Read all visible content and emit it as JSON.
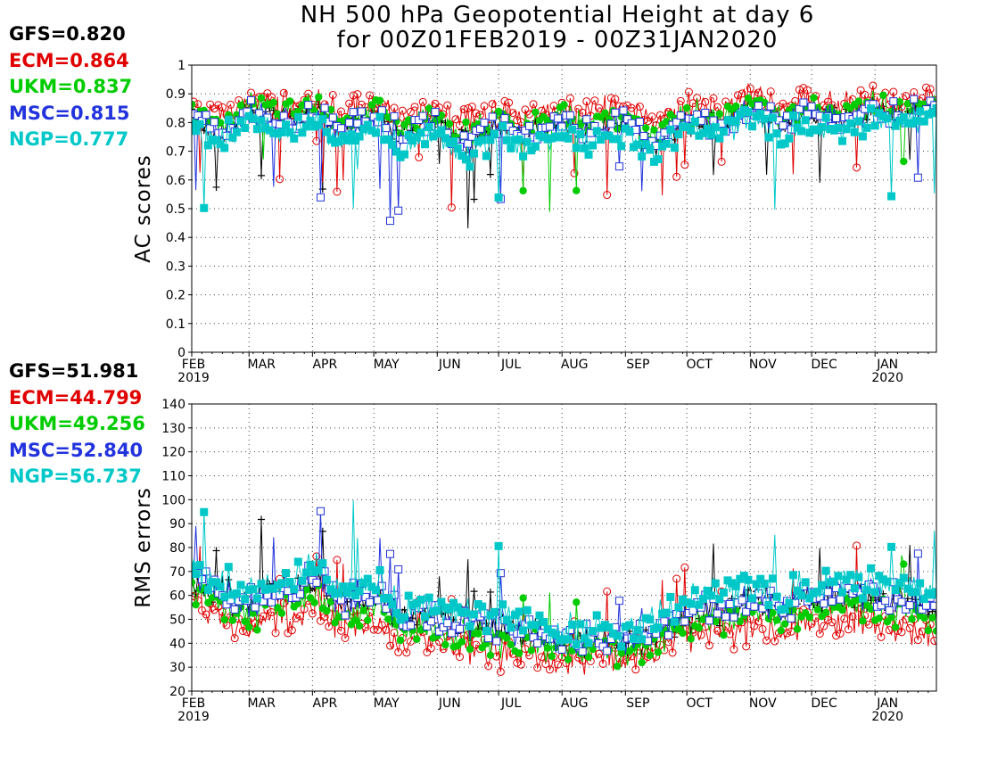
{
  "title": {
    "line1": "NH 500 hPa Geopotential Height at day 6",
    "line2": "for 00Z01FEB2019 - 00Z31JAN2020"
  },
  "colors": {
    "GFS": "#000000",
    "ECM": "#e00000",
    "UKM": "#00cc00",
    "MSC": "#2233dd",
    "NGP": "#00c8c8"
  },
  "chart_data": [
    {
      "type": "line",
      "title": "",
      "xlabel": "",
      "ylabel": "AC scores",
      "ylim": [
        0,
        1
      ],
      "yticks": [
        "0",
        "0.1",
        "0.2",
        "0.3",
        "0.4",
        "0.5",
        "0.6",
        "0.7",
        "0.8",
        "0.9",
        "1"
      ],
      "xticks": [
        "FEB",
        "MAR",
        "APR",
        "MAY",
        "JUN",
        "JUL",
        "AUG",
        "SEP",
        "OCT",
        "NOV",
        "DEC",
        "JAN"
      ],
      "xsub": {
        "FEB": "2019",
        "JAN": "2020"
      },
      "grid": true,
      "summary": [
        {
          "model": "GFS",
          "text": "GFS=0.820",
          "value": 0.82
        },
        {
          "model": "ECM",
          "text": "ECM=0.864",
          "value": 0.864
        },
        {
          "model": "UKM",
          "text": "UKM=0.837",
          "value": 0.837
        },
        {
          "model": "MSC",
          "text": "MSC=0.815",
          "value": 0.815
        },
        {
          "model": "NGP",
          "text": "NGP=0.777",
          "value": 0.777
        }
      ],
      "x_dates": [
        "2019-02-01",
        "2019-02-15",
        "2019-03-01",
        "2019-03-15",
        "2019-04-01",
        "2019-04-15",
        "2019-05-01",
        "2019-05-15",
        "2019-06-01",
        "2019-06-15",
        "2019-07-01",
        "2019-07-15",
        "2019-08-01",
        "2019-08-15",
        "2019-09-01",
        "2019-09-15",
        "2019-10-01",
        "2019-10-15",
        "2019-11-01",
        "2019-11-15",
        "2019-12-01",
        "2019-12-15",
        "2020-01-01",
        "2020-01-15",
        "2020-01-31"
      ],
      "series": [
        {
          "name": "GFS",
          "marker": "plus",
          "values": [
            0.82,
            0.76,
            0.85,
            0.8,
            0.84,
            0.79,
            0.82,
            0.77,
            0.8,
            0.73,
            0.79,
            0.76,
            0.81,
            0.77,
            0.79,
            0.72,
            0.82,
            0.78,
            0.84,
            0.8,
            0.83,
            0.81,
            0.85,
            0.82,
            0.86
          ]
        },
        {
          "name": "ECM",
          "marker": "circle",
          "values": [
            0.86,
            0.84,
            0.89,
            0.86,
            0.88,
            0.85,
            0.87,
            0.84,
            0.85,
            0.81,
            0.84,
            0.82,
            0.86,
            0.84,
            0.85,
            0.8,
            0.87,
            0.85,
            0.89,
            0.86,
            0.88,
            0.86,
            0.89,
            0.87,
            0.9
          ]
        },
        {
          "name": "UKM",
          "marker": "dot",
          "values": [
            0.84,
            0.8,
            0.87,
            0.83,
            0.86,
            0.81,
            0.85,
            0.8,
            0.82,
            0.76,
            0.82,
            0.78,
            0.83,
            0.8,
            0.82,
            0.76,
            0.84,
            0.81,
            0.86,
            0.83,
            0.86,
            0.83,
            0.87,
            0.84,
            0.88
          ]
        },
        {
          "name": "MSC",
          "marker": "square",
          "values": [
            0.81,
            0.77,
            0.84,
            0.8,
            0.83,
            0.78,
            0.82,
            0.77,
            0.8,
            0.72,
            0.8,
            0.75,
            0.81,
            0.77,
            0.8,
            0.73,
            0.82,
            0.78,
            0.84,
            0.81,
            0.84,
            0.8,
            0.85,
            0.82,
            0.86
          ]
        },
        {
          "name": "NGP",
          "marker": "filledsquare",
          "values": [
            0.78,
            0.74,
            0.82,
            0.76,
            0.8,
            0.74,
            0.79,
            0.72,
            0.77,
            0.68,
            0.76,
            0.7,
            0.78,
            0.73,
            0.76,
            0.69,
            0.79,
            0.75,
            0.81,
            0.77,
            0.8,
            0.77,
            0.82,
            0.79,
            0.84
          ]
        }
      ]
    },
    {
      "type": "line",
      "title": "",
      "xlabel": "",
      "ylabel": "RMS errors",
      "ylim": [
        20,
        140
      ],
      "yticks": [
        "20",
        "30",
        "40",
        "50",
        "60",
        "70",
        "80",
        "90",
        "100",
        "110",
        "120",
        "130",
        "140"
      ],
      "xticks": [
        "FEB",
        "MAR",
        "APR",
        "MAY",
        "JUN",
        "JUL",
        "AUG",
        "SEP",
        "OCT",
        "NOV",
        "DEC",
        "JAN"
      ],
      "xsub": {
        "FEB": "2019",
        "JAN": "2020"
      },
      "grid": true,
      "summary": [
        {
          "model": "GFS",
          "text": "GFS=51.981",
          "value": 51.981
        },
        {
          "model": "ECM",
          "text": "ECM=44.799",
          "value": 44.799
        },
        {
          "model": "UKM",
          "text": "UKM=49.256",
          "value": 49.256
        },
        {
          "model": "MSC",
          "text": "MSC=52.840",
          "value": 52.84
        },
        {
          "model": "NGP",
          "text": "NGP=56.737",
          "value": 56.737
        }
      ],
      "x_dates": [
        "2019-02-01",
        "2019-02-15",
        "2019-03-01",
        "2019-03-15",
        "2019-04-01",
        "2019-04-15",
        "2019-05-01",
        "2019-05-15",
        "2019-06-01",
        "2019-06-15",
        "2019-07-01",
        "2019-07-15",
        "2019-08-01",
        "2019-08-15",
        "2019-09-01",
        "2019-09-15",
        "2019-10-01",
        "2019-10-15",
        "2019-11-01",
        "2019-11-15",
        "2019-12-01",
        "2019-12-15",
        "2020-01-01",
        "2020-01-15",
        "2020-01-31"
      ],
      "series": [
        {
          "name": "GFS",
          "marker": "plus",
          "values": [
            66,
            62,
            57,
            60,
            66,
            58,
            60,
            52,
            50,
            49,
            46,
            45,
            41,
            42,
            38,
            44,
            52,
            53,
            56,
            55,
            58,
            60,
            59,
            57,
            54
          ]
        },
        {
          "name": "ECM",
          "marker": "circle",
          "values": [
            58,
            52,
            48,
            50,
            55,
            47,
            49,
            42,
            40,
            38,
            36,
            34,
            33,
            35,
            32,
            36,
            44,
            45,
            46,
            45,
            48,
            50,
            49,
            47,
            44
          ]
        },
        {
          "name": "UKM",
          "marker": "dot",
          "values": [
            62,
            58,
            52,
            55,
            60,
            52,
            55,
            47,
            45,
            43,
            41,
            40,
            37,
            39,
            35,
            40,
            49,
            50,
            52,
            51,
            54,
            56,
            54,
            52,
            50
          ]
        },
        {
          "name": "MSC",
          "marker": "square",
          "values": [
            67,
            62,
            57,
            61,
            68,
            58,
            61,
            52,
            50,
            49,
            46,
            45,
            41,
            43,
            39,
            46,
            53,
            55,
            57,
            56,
            59,
            62,
            61,
            58,
            55
          ]
        },
        {
          "name": "NGP",
          "marker": "filledsquare",
          "values": [
            70,
            66,
            62,
            64,
            72,
            62,
            66,
            56,
            55,
            54,
            51,
            49,
            45,
            47,
            44,
            50,
            58,
            60,
            62,
            61,
            64,
            67,
            66,
            63,
            60
          ]
        }
      ]
    }
  ]
}
